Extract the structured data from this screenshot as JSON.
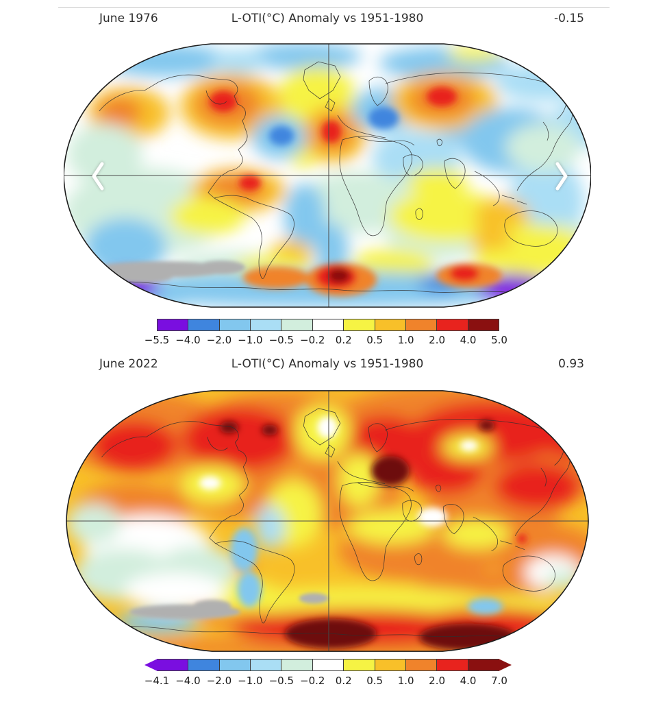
{
  "page": {
    "background": "#ffffff",
    "divider_color": "#c9c9c9"
  },
  "maps": [
    {
      "period": "June 1976",
      "title": "L-OTI(°C) Anomaly vs 1951-1980",
      "mean": "-0.15"
    },
    {
      "period": "June 2022",
      "title": "L-OTI(°C) Anomaly vs 1951-1980",
      "mean": "0.93"
    }
  ],
  "carousel": {
    "prev_icon": "chevron-left",
    "next_icon": "chevron-right",
    "arrow_color": "#ffffff"
  },
  "palette": {
    "purple": "#7a0ee0",
    "blue": "#3f85de",
    "light_blue": "#82c7ee",
    "pale_blue": "#aadef5",
    "pale_green": "#d2eedd",
    "white": "#ffffff",
    "yellow": "#f6f344",
    "amber": "#f8c029",
    "orange": "#f0832b",
    "red": "#e8231e",
    "dark_red": "#8a1010",
    "maroon": "#6d0b0b",
    "no_data_gray": "#b0b0b0"
  },
  "chart_data": [
    {
      "type": "heatmap",
      "subtype": "global-temperature-anomaly-map",
      "projection": "Robinson",
      "period": "June 1976",
      "title": "L-OTI(°C) Anomaly vs 1951-1980",
      "baseline": "1951-1980",
      "units": "°C",
      "global_mean_anomaly": -0.15,
      "legend_position": "bottom",
      "grid": "equator and prime meridian lines",
      "no_data_color": "#b0b0b0",
      "colorbar": {
        "tick_labels": [
          "−5.5",
          "−4.0",
          "−2.0",
          "−1.0",
          "−0.5",
          "−0.2",
          "0.2",
          "0.5",
          "1.0",
          "2.0",
          "4.0",
          "5.0"
        ],
        "segment_colors": [
          "#7a0ee0",
          "#3f85de",
          "#82c7ee",
          "#aadef5",
          "#d2eedd",
          "#ffffff",
          "#f6f344",
          "#f8c029",
          "#f0832b",
          "#e8231e",
          "#8a1010"
        ],
        "arrow_ends": false
      }
    },
    {
      "type": "heatmap",
      "subtype": "global-temperature-anomaly-map",
      "projection": "Robinson",
      "period": "June 2022",
      "title": "L-OTI(°C) Anomaly vs 1951-1980",
      "baseline": "1951-1980",
      "units": "°C",
      "global_mean_anomaly": 0.93,
      "legend_position": "bottom",
      "grid": "equator and prime meridian lines",
      "no_data_color": "#b0b0b0",
      "colorbar": {
        "tick_labels": [
          "−4.1",
          "−4.0",
          "−2.0",
          "−1.0",
          "−0.5",
          "−0.2",
          "0.2",
          "0.5",
          "1.0",
          "2.0",
          "4.0",
          "7.0"
        ],
        "segment_colors": [
          "#7a0ee0",
          "#3f85de",
          "#82c7ee",
          "#aadef5",
          "#d2eedd",
          "#ffffff",
          "#f6f344",
          "#f8c029",
          "#f0832b",
          "#e8231e",
          "#8a1010"
        ],
        "arrow_ends": true
      }
    }
  ]
}
